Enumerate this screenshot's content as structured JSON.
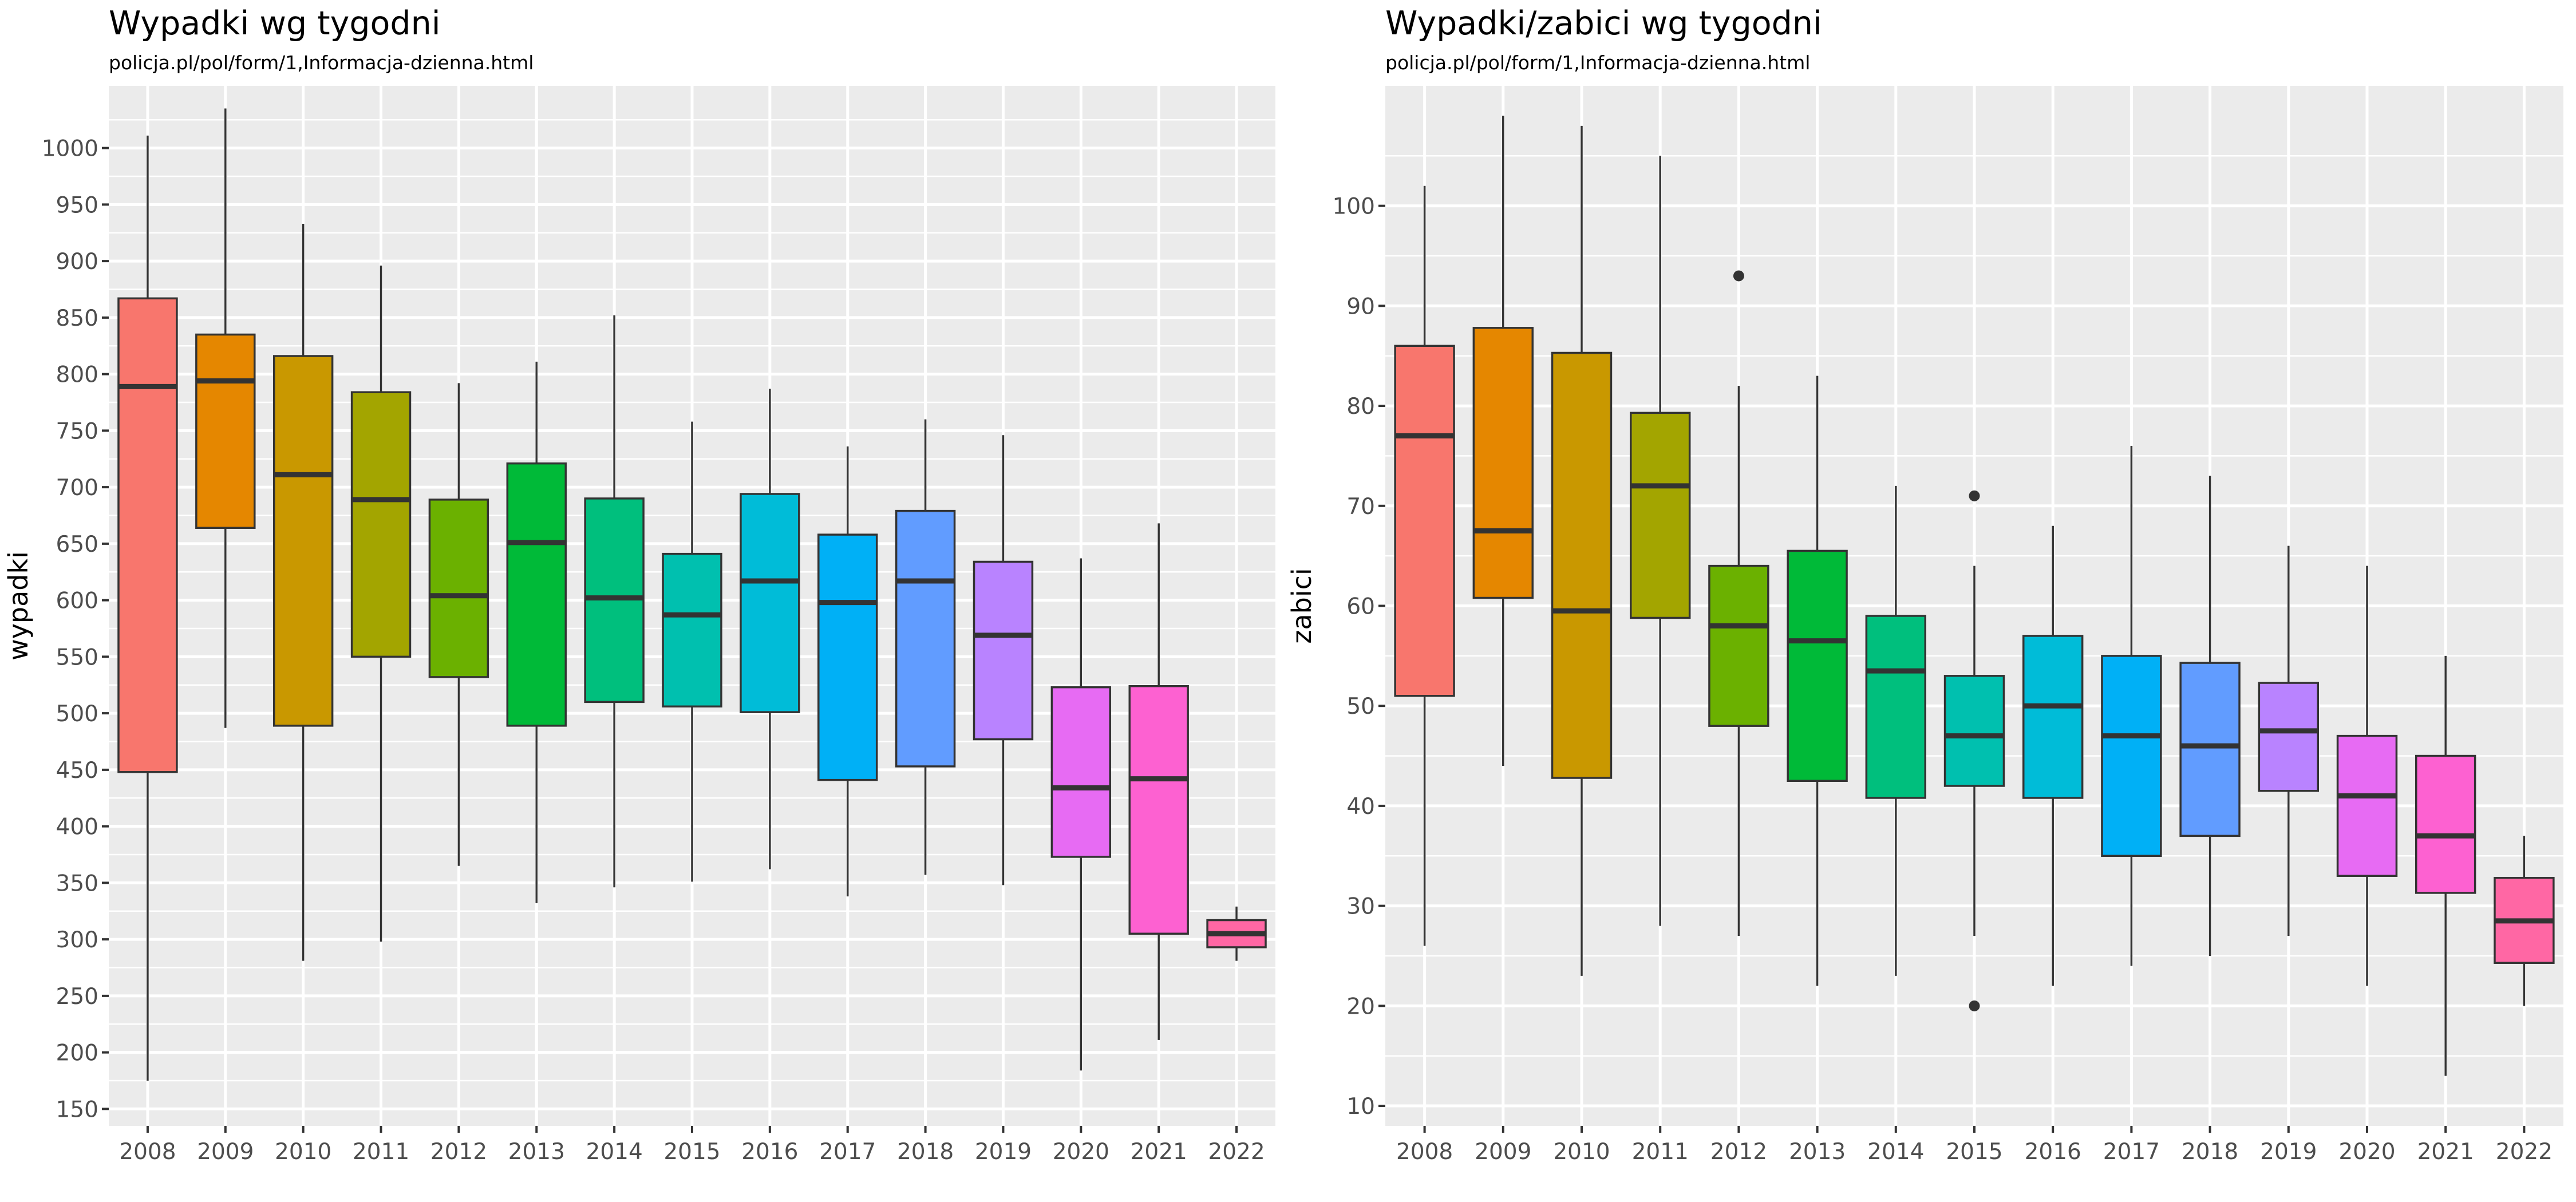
{
  "palette": [
    "#F8766D",
    "#E58700",
    "#C99800",
    "#A3A500",
    "#6BB100",
    "#00BA38",
    "#00BF7D",
    "#00C0AF",
    "#00BCD8",
    "#00B0F6",
    "#619CFF",
    "#B983FF",
    "#E76BF3",
    "#FD61D1",
    "#FF67A4"
  ],
  "chart_data": [
    {
      "type": "boxplot",
      "title": "Wypadki wg tygodni",
      "subtitle": "policja.pl/pol/form/1,Informacja-dzienna.html",
      "xlabel": "",
      "ylabel": "wypadki",
      "ylim": [
        135,
        1055
      ],
      "yticks": [
        150,
        200,
        250,
        300,
        350,
        400,
        450,
        500,
        550,
        600,
        650,
        700,
        750,
        800,
        850,
        900,
        950,
        1000
      ],
      "grid": true,
      "legend": "none",
      "categories": [
        "2008",
        "2009",
        "2010",
        "2011",
        "2012",
        "2013",
        "2014",
        "2015",
        "2016",
        "2017",
        "2018",
        "2019",
        "2020",
        "2021",
        "2022"
      ],
      "boxes": [
        {
          "min": 175,
          "q1": 448,
          "median": 789,
          "q3": 867,
          "max": 1011,
          "outliers": []
        },
        {
          "min": 487,
          "q1": 664,
          "median": 794,
          "q3": 835,
          "max": 1035,
          "outliers": []
        },
        {
          "min": 281,
          "q1": 489,
          "median": 711,
          "q3": 816,
          "max": 933,
          "outliers": []
        },
        {
          "min": 298,
          "q1": 550,
          "median": 689,
          "q3": 784,
          "max": 896,
          "outliers": []
        },
        {
          "min": 365,
          "q1": 532,
          "median": 604,
          "q3": 689,
          "max": 792,
          "outliers": []
        },
        {
          "min": 332,
          "q1": 489,
          "median": 651,
          "q3": 721,
          "max": 811,
          "outliers": []
        },
        {
          "min": 346,
          "q1": 510,
          "median": 602,
          "q3": 690,
          "max": 852,
          "outliers": []
        },
        {
          "min": 351,
          "q1": 506,
          "median": 587,
          "q3": 641,
          "max": 758,
          "outliers": []
        },
        {
          "min": 362,
          "q1": 501,
          "median": 617,
          "q3": 694,
          "max": 787,
          "outliers": []
        },
        {
          "min": 338,
          "q1": 441,
          "median": 598,
          "q3": 658,
          "max": 736,
          "outliers": []
        },
        {
          "min": 357,
          "q1": 453,
          "median": 617,
          "q3": 679,
          "max": 760,
          "outliers": []
        },
        {
          "min": 348,
          "q1": 477,
          "median": 569,
          "q3": 634,
          "max": 746,
          "outliers": []
        },
        {
          "min": 184,
          "q1": 373,
          "median": 434,
          "q3": 523,
          "max": 637,
          "outliers": []
        },
        {
          "min": 211,
          "q1": 305,
          "median": 442,
          "q3": 524,
          "max": 668,
          "outliers": []
        },
        {
          "min": 281,
          "q1": 293,
          "median": 305,
          "q3": 317,
          "max": 329,
          "outliers": []
        }
      ]
    },
    {
      "type": "boxplot",
      "title": "Wypadki/zabici wg tygodni",
      "subtitle": "policja.pl/pol/form/1,Informacja-dzienna.html",
      "xlabel": "",
      "ylabel": "zabici",
      "ylim": [
        8,
        112
      ],
      "yticks": [
        10,
        20,
        30,
        40,
        50,
        60,
        70,
        80,
        90,
        100
      ],
      "grid": true,
      "legend": "none",
      "categories": [
        "2008",
        "2009",
        "2010",
        "2011",
        "2012",
        "2013",
        "2014",
        "2015",
        "2016",
        "2017",
        "2018",
        "2019",
        "2020",
        "2021",
        "2022"
      ],
      "boxes": [
        {
          "min": 26,
          "q1": 51,
          "median": 77,
          "q3": 86,
          "max": 102,
          "outliers": []
        },
        {
          "min": 44,
          "q1": 60.8,
          "median": 67.5,
          "q3": 87.8,
          "max": 109,
          "outliers": []
        },
        {
          "min": 23,
          "q1": 42.8,
          "median": 59.5,
          "q3": 85.3,
          "max": 108,
          "outliers": []
        },
        {
          "min": 28,
          "q1": 58.8,
          "median": 72,
          "q3": 79.3,
          "max": 105,
          "outliers": []
        },
        {
          "min": 27,
          "q1": 48,
          "median": 58,
          "q3": 64,
          "max": 82,
          "outliers": [
            93
          ]
        },
        {
          "min": 22,
          "q1": 42.5,
          "median": 56.5,
          "q3": 65.5,
          "max": 83,
          "outliers": []
        },
        {
          "min": 23,
          "q1": 40.8,
          "median": 53.5,
          "q3": 59,
          "max": 72,
          "outliers": []
        },
        {
          "min": 27,
          "q1": 42,
          "median": 47,
          "q3": 53,
          "max": 64,
          "outliers": [
            71,
            20
          ]
        },
        {
          "min": 22,
          "q1": 40.8,
          "median": 50,
          "q3": 57,
          "max": 68,
          "outliers": []
        },
        {
          "min": 24,
          "q1": 35,
          "median": 47,
          "q3": 55,
          "max": 76,
          "outliers": []
        },
        {
          "min": 25,
          "q1": 37,
          "median": 46,
          "q3": 54.3,
          "max": 73,
          "outliers": []
        },
        {
          "min": 27,
          "q1": 41.5,
          "median": 47.5,
          "q3": 52.3,
          "max": 66,
          "outliers": []
        },
        {
          "min": 22,
          "q1": 33,
          "median": 41,
          "q3": 47,
          "max": 64,
          "outliers": []
        },
        {
          "min": 13,
          "q1": 31.3,
          "median": 37,
          "q3": 45,
          "max": 55,
          "outliers": []
        },
        {
          "min": 20,
          "q1": 24.3,
          "median": 28.5,
          "q3": 32.8,
          "max": 37,
          "outliers": []
        }
      ]
    }
  ]
}
